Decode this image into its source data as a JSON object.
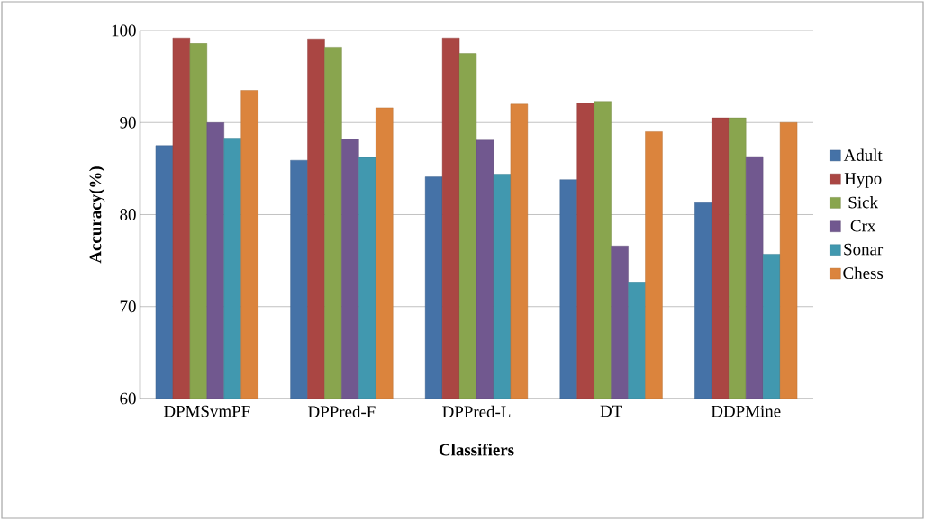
{
  "chart_data": {
    "type": "bar",
    "xlabel": "Classifiers",
    "ylabel": "Accuracy(%)",
    "categories": [
      "DPMSvmPF",
      "DPPred-F",
      "DPPred-L",
      "DT",
      "DDPMine"
    ],
    "series": [
      {
        "name": "Adult",
        "color": "#4572a7",
        "values": [
          87.5,
          85.9,
          84.1,
          83.8,
          81.3
        ]
      },
      {
        "name": "Hypo",
        "color": "#aa4643",
        "values": [
          99.2,
          99.1,
          99.2,
          92.1,
          90.5
        ]
      },
      {
        "name": "Sick",
        "color": "#89a54e",
        "values": [
          98.6,
          98.2,
          97.5,
          92.3,
          90.5
        ]
      },
      {
        "name": "Crx",
        "color": "#71588f",
        "values": [
          90.0,
          88.2,
          88.1,
          76.6,
          86.3
        ]
      },
      {
        "name": "Sonar",
        "color": "#4198af",
        "values": [
          88.3,
          86.2,
          84.4,
          72.6,
          75.7
        ]
      },
      {
        "name": "Chess",
        "color": "#db843d",
        "values": [
          93.5,
          91.6,
          92.0,
          89.0,
          90.0
        ]
      }
    ],
    "ylim": [
      60,
      100
    ],
    "yticks": [
      60,
      70,
      80,
      90,
      100
    ],
    "grid": "y",
    "legend": "right"
  }
}
